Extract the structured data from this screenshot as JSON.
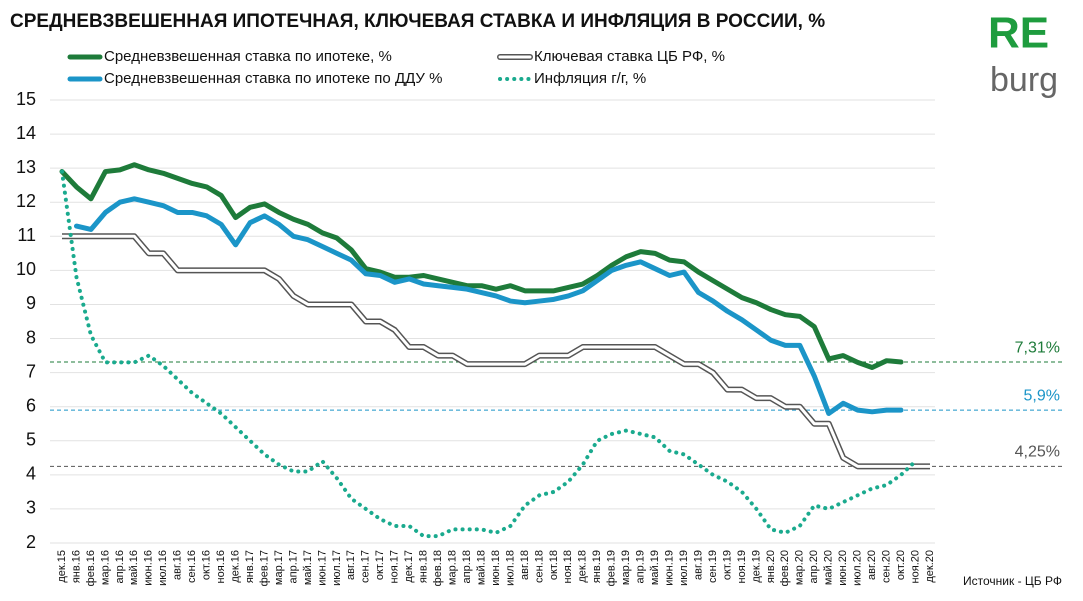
{
  "chart_data": {
    "type": "line",
    "title": "СРЕДНЕВЗВЕШЕННАЯ ИПОТЕЧНАЯ, КЛЮЧЕВАЯ СТАВКА И ИНФЛЯЦИЯ В РОССИИ, %",
    "logo": [
      "RE",
      "burg"
    ],
    "source": "Источник  - ЦБ РФ",
    "categories": [
      "дек.15",
      "янв.16",
      "фев.16",
      "мар.16",
      "апр.16",
      "май.16",
      "июн.16",
      "июл.16",
      "авг.16",
      "сен.16",
      "окт.16",
      "ноя.16",
      "дек.16",
      "янв.17",
      "фев.17",
      "мар.17",
      "апр.17",
      "май.17",
      "июн.17",
      "июл.17",
      "авг.17",
      "сен.17",
      "окт.17",
      "ноя.17",
      "дек.17",
      "янв.18",
      "фев.18",
      "мар.18",
      "апр.18",
      "май.18",
      "июн.18",
      "июл.18",
      "авг.18",
      "сен.18",
      "окт.18",
      "ноя.18",
      "дек.18",
      "янв.19",
      "фев.19",
      "мар.19",
      "апр.19",
      "май.19",
      "июн.19",
      "июл.19",
      "авг.19",
      "сен.19",
      "окт.19",
      "ноя.19",
      "дек.19",
      "янв.20",
      "фев.20",
      "мар.20",
      "апр.20",
      "май.20",
      "июн.20",
      "июл.20",
      "авг.20",
      "сен.20",
      "окт.20",
      "ноя.20",
      "дек.20"
    ],
    "series": [
      {
        "name": "Средневзвешенная ставка по ипотеке, %",
        "color": "#1e7b3a",
        "style": "solid",
        "values": [
          12.9,
          12.45,
          12.1,
          12.9,
          12.95,
          13.1,
          12.95,
          12.85,
          12.7,
          12.55,
          12.45,
          12.2,
          11.55,
          11.85,
          11.95,
          11.7,
          11.5,
          11.35,
          11.1,
          10.95,
          10.6,
          10.05,
          9.95,
          9.8,
          9.8,
          9.85,
          9.75,
          9.65,
          9.55,
          9.55,
          9.45,
          9.55,
          9.4,
          9.4,
          9.4,
          9.5,
          9.6,
          9.85,
          10.15,
          10.4,
          10.55,
          10.5,
          10.3,
          10.25,
          9.95,
          9.7,
          9.45,
          9.2,
          9.05,
          8.85,
          8.7,
          8.65,
          8.35,
          7.4,
          7.5,
          7.3,
          7.15,
          7.35,
          7.31,
          null,
          null
        ]
      },
      {
        "name": "Ключевая ставка ЦБ РФ, %",
        "color": "#555555",
        "style": "double",
        "values": [
          11,
          11,
          11,
          11,
          11,
          11,
          10.5,
          10.5,
          10,
          10,
          10,
          10,
          10,
          10,
          10,
          9.75,
          9.25,
          9,
          9,
          9,
          9,
          8.5,
          8.5,
          8.25,
          7.75,
          7.75,
          7.5,
          7.5,
          7.25,
          7.25,
          7.25,
          7.25,
          7.25,
          7.5,
          7.5,
          7.5,
          7.75,
          7.75,
          7.75,
          7.75,
          7.75,
          7.75,
          7.5,
          7.25,
          7.25,
          7,
          6.5,
          6.5,
          6.25,
          6.25,
          6,
          6,
          5.5,
          5.5,
          4.5,
          4.25,
          4.25,
          4.25,
          4.25,
          4.25,
          4.25
        ]
      },
      {
        "name": "Средневзвешенная ставка по ипотеке по ДДУ %",
        "color": "#1b95c8",
        "style": "solid",
        "values": [
          null,
          11.3,
          11.2,
          11.7,
          12.0,
          12.1,
          12.0,
          11.9,
          11.7,
          11.7,
          11.6,
          11.35,
          10.75,
          11.4,
          11.6,
          11.35,
          11.0,
          10.9,
          10.7,
          10.5,
          10.3,
          9.9,
          9.85,
          9.65,
          9.75,
          9.6,
          9.55,
          9.5,
          9.45,
          9.35,
          9.25,
          9.1,
          9.05,
          9.1,
          9.15,
          9.25,
          9.4,
          9.7,
          10.0,
          10.15,
          10.25,
          10.05,
          9.85,
          9.95,
          9.35,
          9.1,
          8.8,
          8.55,
          8.25,
          7.95,
          7.8,
          7.8,
          6.9,
          5.8,
          6.1,
          5.9,
          5.85,
          5.9,
          5.9,
          null,
          null
        ]
      },
      {
        "name": "Инфляция г/г,  %",
        "color": "#1aaa8e",
        "style": "dotted",
        "values": [
          12.9,
          9.8,
          8.1,
          7.3,
          7.3,
          7.3,
          7.5,
          7.2,
          6.8,
          6.4,
          6.1,
          5.8,
          5.4,
          5.0,
          4.6,
          4.3,
          4.1,
          4.1,
          4.4,
          3.9,
          3.3,
          3.0,
          2.7,
          2.5,
          2.5,
          2.2,
          2.2,
          2.4,
          2.4,
          2.4,
          2.3,
          2.5,
          3.1,
          3.4,
          3.5,
          3.8,
          4.3,
          5.0,
          5.2,
          5.3,
          5.2,
          5.1,
          4.7,
          4.6,
          4.3,
          4.0,
          3.8,
          3.5,
          3.0,
          2.4,
          2.3,
          2.5,
          3.1,
          3.0,
          3.2,
          3.4,
          3.6,
          3.7,
          4.0,
          4.4,
          null
        ]
      }
    ],
    "reference_lines": [
      {
        "value": 7.31,
        "label": "7,31%",
        "color": "#1e7b3a"
      },
      {
        "value": 5.9,
        "label": "5,9%",
        "color": "#1b95c8"
      },
      {
        "value": 4.25,
        "label": "4,25%",
        "color": "#555555"
      }
    ],
    "ylim": [
      2,
      15
    ],
    "yticks": [
      2,
      3,
      4,
      5,
      6,
      7,
      8,
      9,
      10,
      11,
      12,
      13,
      14,
      15
    ],
    "grid": true
  }
}
